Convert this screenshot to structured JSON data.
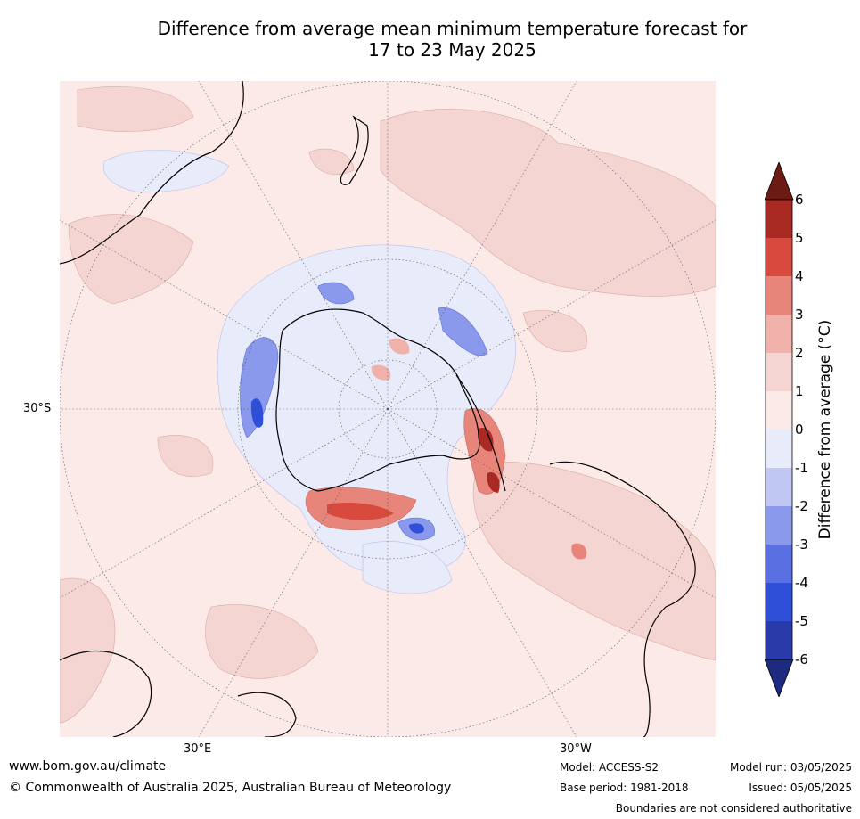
{
  "title": {
    "line1": "Difference from average mean minimum temperature forecast for",
    "line2": "17 to 23 May 2025"
  },
  "map": {
    "projection": "south polar stereographic",
    "lat_label": "30°S",
    "lon_labels": [
      "30°E",
      "30°W"
    ],
    "background_color": "#fbeae8"
  },
  "colorbar": {
    "label": "Difference from average (°C)",
    "ticks": [
      "6",
      "5",
      "4",
      "3",
      "2",
      "1",
      "0",
      "-1",
      "-2",
      "-3",
      "-4",
      "-5",
      "-6"
    ],
    "colors": {
      "above_6": "#6b1a14",
      "5_to_6": "#a82a22",
      "4_to_5": "#d84a3e",
      "3_to_4": "#e8857b",
      "2_to_3": "#efb1aa",
      "1_to_2": "#f5d5d2",
      "0_to_1": "#fbeae8",
      "-1_to_0": "#e8ebfa",
      "-2_to_-1": "#c0c7f2",
      "-3_to_-2": "#8a99eb",
      "-4_to_-3": "#5a6fe2",
      "-5_to_-4": "#2f4fd8",
      "-6_to_-5": "#283ba8",
      "below_-6": "#1e2a80"
    }
  },
  "footer": {
    "website": "www.bom.gov.au/climate",
    "copyright": "© Commonwealth of Australia 2025, Australian Bureau of Meteorology",
    "model": "Model: ACCESS-S2",
    "base_period": "Base period: 1981-2018",
    "model_run": "Model run: 03/05/2025",
    "issued": "Issued: 05/05/2025",
    "disclaimer": "Boundaries are not considered authoritative"
  }
}
